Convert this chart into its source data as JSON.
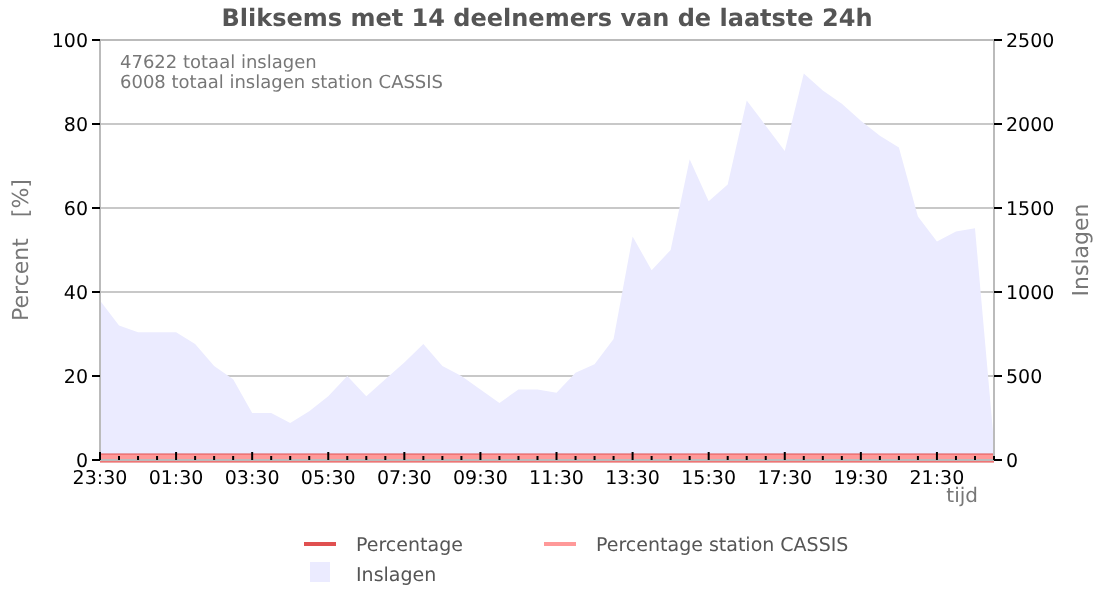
{
  "chart_data": {
    "type": "line",
    "title": "Bliksems met 14 deelnemers van de laatste 24h",
    "xlabel": "tijd",
    "ylabel": "Percent   [%]",
    "y2label": "Inslagen",
    "annotations": [
      "47622 totaal inslagen",
      "6008 totaal inslagen station CASSIS"
    ],
    "categories": [
      "23:30",
      null,
      null,
      null,
      "01:30",
      null,
      null,
      null,
      "03:30",
      null,
      null,
      null,
      "05:30",
      null,
      null,
      null,
      "07:30",
      null,
      null,
      null,
      "09:30",
      null,
      null,
      null,
      "11:30",
      null,
      null,
      null,
      "13:30",
      null,
      null,
      null,
      "15:30",
      null,
      null,
      null,
      "17:30",
      null,
      null,
      null,
      "19:30",
      null,
      null,
      null,
      "21:30",
      null,
      null,
      null
    ],
    "ylim": [
      0,
      100
    ],
    "yticks": [
      0,
      20,
      40,
      60,
      80,
      100
    ],
    "y2lim": [
      0,
      2500
    ],
    "y2ticks": [
      0,
      500,
      1000,
      1500,
      2000,
      2500
    ],
    "grid": "y",
    "legend": "bottom",
    "series": [
      {
        "name": "Percentage",
        "color": "#e05050",
        "values": [
          0.5,
          0.5,
          0.5,
          0.5,
          0.5,
          0.5,
          0.5,
          0.5,
          0.5,
          0.5,
          0.5,
          0.5,
          0.5,
          0.5,
          0.5,
          0.5,
          0.5,
          0.5,
          0.5,
          0.5,
          0.5,
          0.5,
          0.5,
          0.5,
          0.5,
          0.5,
          0.5,
          0.5,
          0.5,
          0.5,
          0.5,
          0.5,
          0.5,
          0.5,
          0.5,
          0.5,
          0.5,
          0.5,
          0.5,
          0.5,
          0.5,
          0.5,
          0.5,
          0.5,
          0.5,
          0.5,
          0.5,
          0.5
        ]
      },
      {
        "name": "Percentage station CASSIS",
        "color": "#ff9999",
        "values": [
          0.5,
          0.5,
          0.5,
          0.5,
          0.5,
          0.5,
          0.5,
          0.5,
          0.5,
          0.5,
          0.5,
          0.5,
          0.5,
          0.5,
          0.5,
          0.5,
          0.5,
          0.5,
          0.5,
          0.5,
          0.5,
          0.5,
          0.5,
          0.5,
          0.5,
          0.5,
          0.5,
          0.5,
          0.5,
          0.5,
          0.5,
          0.5,
          0.5,
          0.5,
          0.5,
          0.5,
          0.5,
          0.5,
          0.5,
          0.5,
          0.5,
          0.5,
          0.5,
          0.5,
          0.5,
          0.5,
          0.5,
          0.5
        ]
      },
      {
        "name": "Inslagen",
        "type": "area",
        "axis": "y2",
        "color": "#ebebff",
        "values": [
          950,
          800,
          760,
          760,
          760,
          690,
          560,
          480,
          280,
          280,
          220,
          290,
          380,
          500,
          380,
          480,
          580,
          690,
          560,
          500,
          420,
          340,
          420,
          420,
          400,
          520,
          570,
          720,
          1330,
          1130,
          1250,
          1790,
          1540,
          1640,
          2140,
          1990,
          1840,
          2300,
          2200,
          2120,
          2020,
          1930,
          1860,
          1450,
          1300,
          1360,
          1380,
          100
        ]
      }
    ]
  }
}
